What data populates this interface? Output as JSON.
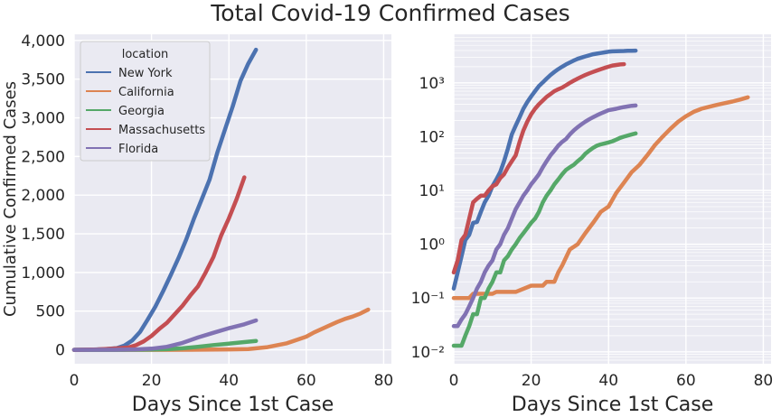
{
  "title": "Total Covid-19 Confirmed Cases",
  "legend_title": "location",
  "chart_data": [
    {
      "type": "line",
      "xlabel": "Days Since 1st Case",
      "ylabel": "Cumulative Confirmed Cases",
      "xlim": [
        0,
        82
      ],
      "ylim": [
        -180,
        4080
      ],
      "x_ticks": [
        0,
        20,
        40,
        60,
        80
      ],
      "y_ticks": [
        0,
        500,
        1000,
        1500,
        2000,
        2500,
        3000,
        3500,
        4000
      ],
      "y_tick_labels": [
        "0",
        "500",
        "1,000",
        "1,500",
        "2,000",
        "2,500",
        "3,000",
        "3,500",
        "4,000"
      ],
      "grid": true,
      "legend": "top-left",
      "series": [
        {
          "name": "New York",
          "color": "#4c72b0",
          "x": [
            0,
            4,
            8,
            11,
            13,
            15,
            17,
            19,
            21,
            23,
            25,
            27,
            29,
            31,
            33,
            35,
            37,
            39,
            41,
            43,
            45,
            47
          ],
          "y": [
            0,
            2,
            8,
            22,
            55,
            120,
            230,
            390,
            560,
            760,
            970,
            1190,
            1430,
            1700,
            1950,
            2200,
            2550,
            2850,
            3150,
            3480,
            3700,
            3880
          ]
        },
        {
          "name": "California",
          "color": "#dd8452",
          "x": [
            0,
            10,
            20,
            30,
            40,
            45,
            50,
            55,
            60,
            62,
            64,
            66,
            68,
            70,
            72,
            74,
            76
          ],
          "y": [
            0,
            0.2,
            0.2,
            0.8,
            5,
            10,
            35,
            85,
            170,
            225,
            270,
            315,
            360,
            400,
            430,
            470,
            520
          ]
        },
        {
          "name": "Georgia",
          "color": "#55a868",
          "x": [
            0,
            10,
            16,
            20,
            24,
            28,
            32,
            36,
            40,
            44,
            47
          ],
          "y": [
            0,
            0,
            1,
            3,
            8,
            20,
            40,
            62,
            80,
            100,
            115
          ]
        },
        {
          "name": "Massachusetts",
          "color": "#c44e52",
          "x": [
            0,
            6,
            10,
            14,
            16,
            18,
            20,
            22,
            24,
            26,
            28,
            30,
            32,
            34,
            36,
            38,
            40,
            42,
            44
          ],
          "y": [
            0,
            6,
            15,
            30,
            60,
            110,
            180,
            270,
            350,
            460,
            570,
            700,
            820,
            1000,
            1200,
            1480,
            1700,
            1950,
            2230
          ]
        },
        {
          "name": "Florida",
          "color": "#8172b3",
          "x": [
            0,
            10,
            16,
            20,
            24,
            28,
            32,
            36,
            40,
            44,
            47
          ],
          "y": [
            0,
            0.5,
            5,
            15,
            40,
            90,
            160,
            220,
            280,
            330,
            380
          ]
        }
      ]
    },
    {
      "type": "line",
      "xlabel": "Days Since 1st Case",
      "ylabel": "",
      "xlim": [
        0,
        82
      ],
      "y_scale": "log",
      "ylim": [
        0.006,
        8000
      ],
      "x_ticks": [
        0,
        20,
        40,
        60,
        80
      ],
      "y_ticks": [
        0.01,
        0.1,
        1,
        10,
        100,
        1000
      ],
      "y_tick_labels": [
        "10⁻²",
        "10⁻¹",
        "10⁰",
        "10¹",
        "10²",
        "10³"
      ],
      "grid": true,
      "series": [
        {
          "name": "New York",
          "color": "#4c72b0",
          "x": [
            0,
            1,
            2,
            3,
            4,
            5,
            6,
            7,
            8,
            9,
            10,
            11,
            12,
            13,
            14,
            15,
            16,
            17,
            18,
            19,
            20,
            21,
            22,
            23,
            24,
            25,
            26,
            27,
            28,
            29,
            30,
            31,
            32,
            33,
            34,
            35,
            36,
            37,
            38,
            39,
            40,
            41,
            42,
            43,
            44,
            45,
            46,
            47
          ],
          "y": [
            0.15,
            0.3,
            0.6,
            1.2,
            1.5,
            2.5,
            2.6,
            4,
            6,
            8,
            12,
            16,
            22,
            35,
            60,
            110,
            160,
            230,
            330,
            440,
            560,
            700,
            870,
            1020,
            1200,
            1400,
            1600,
            1800,
            2000,
            2200,
            2400,
            2600,
            2800,
            2950,
            3100,
            3250,
            3400,
            3500,
            3600,
            3700,
            3800,
            3850,
            3880,
            3900,
            3920,
            3940,
            3960,
            3980
          ]
        },
        {
          "name": "California",
          "color": "#dd8452",
          "x": [
            0,
            4,
            5,
            10,
            11,
            16,
            20,
            23,
            24,
            26,
            27,
            28,
            30,
            32,
            34,
            36,
            38,
            40,
            42,
            44,
            46,
            48,
            50,
            52,
            54,
            56,
            58,
            60,
            62,
            64,
            66,
            68,
            70,
            72,
            74,
            76
          ],
          "y": [
            0.1,
            0.1,
            0.12,
            0.12,
            0.13,
            0.13,
            0.17,
            0.17,
            0.2,
            0.2,
            0.3,
            0.4,
            0.8,
            1,
            1.6,
            2.5,
            4,
            5,
            9,
            14,
            22,
            30,
            45,
            70,
            100,
            140,
            190,
            240,
            290,
            330,
            360,
            390,
            420,
            450,
            490,
            540
          ]
        },
        {
          "name": "Georgia",
          "color": "#55a868",
          "x": [
            0,
            1,
            2,
            3,
            4,
            5,
            6,
            7,
            8,
            9,
            10,
            11,
            12,
            13,
            14,
            15,
            16,
            17,
            18,
            19,
            20,
            21,
            22,
            23,
            24,
            25,
            26,
            27,
            28,
            29,
            30,
            31,
            32,
            33,
            34,
            35,
            36,
            37,
            38,
            39,
            40,
            41,
            42,
            43,
            44,
            45,
            46,
            47
          ],
          "y": [
            0.013,
            0.013,
            0.013,
            0.02,
            0.03,
            0.05,
            0.05,
            0.1,
            0.1,
            0.15,
            0.2,
            0.3,
            0.3,
            0.5,
            0.6,
            0.8,
            1,
            1.3,
            1.6,
            2,
            2.5,
            3,
            4,
            6,
            8,
            10,
            13,
            16,
            20,
            24,
            27,
            30,
            35,
            40,
            48,
            55,
            62,
            68,
            72,
            75,
            78,
            82,
            88,
            95,
            100,
            105,
            110,
            115
          ]
        },
        {
          "name": "Massachusetts",
          "color": "#c44e52",
          "x": [
            0,
            1,
            2,
            3,
            4,
            5,
            6,
            7,
            8,
            9,
            10,
            11,
            12,
            13,
            14,
            15,
            16,
            17,
            18,
            19,
            20,
            21,
            22,
            23,
            24,
            25,
            26,
            27,
            28,
            29,
            30,
            31,
            32,
            33,
            34,
            35,
            36,
            37,
            38,
            39,
            40,
            41,
            42,
            43,
            44
          ],
          "y": [
            0.3,
            0.5,
            1.2,
            1.5,
            3,
            6,
            7,
            8,
            8,
            10,
            12,
            13,
            17,
            20,
            27,
            35,
            45,
            80,
            130,
            190,
            260,
            330,
            400,
            470,
            550,
            620,
            700,
            760,
            820,
            900,
            1000,
            1100,
            1200,
            1300,
            1400,
            1500,
            1600,
            1700,
            1800,
            1900,
            2000,
            2100,
            2150,
            2200,
            2230
          ]
        },
        {
          "name": "Florida",
          "color": "#8172b3",
          "x": [
            0,
            1,
            2,
            3,
            4,
            5,
            6,
            7,
            8,
            9,
            10,
            11,
            12,
            13,
            14,
            15,
            16,
            17,
            18,
            19,
            20,
            21,
            22,
            23,
            24,
            25,
            26,
            27,
            28,
            29,
            30,
            31,
            32,
            33,
            34,
            35,
            36,
            37,
            38,
            39,
            40,
            41,
            42,
            43,
            44,
            45,
            46,
            47
          ],
          "y": [
            0.03,
            0.03,
            0.04,
            0.05,
            0.07,
            0.1,
            0.15,
            0.2,
            0.3,
            0.4,
            0.5,
            0.8,
            1,
            1.5,
            2,
            3,
            4.5,
            6,
            8,
            10,
            13,
            16,
            20,
            27,
            35,
            45,
            55,
            68,
            80,
            90,
            110,
            130,
            150,
            170,
            190,
            210,
            230,
            250,
            270,
            290,
            310,
            320,
            330,
            345,
            355,
            365,
            375,
            380
          ]
        }
      ]
    }
  ]
}
